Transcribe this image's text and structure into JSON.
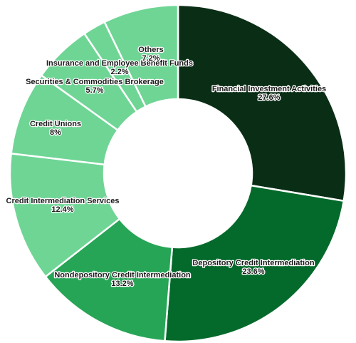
{
  "chart_data": {
    "type": "pie",
    "donut": true,
    "title": "",
    "legend": "none",
    "slices": [
      {
        "label": "Financial Investment Activities",
        "value": 27.6,
        "pct_label": "27.6%",
        "color": "#0a2e15"
      },
      {
        "label": "Depository Credit Intermediation",
        "value": 23.6,
        "pct_label": "23.6%",
        "color": "#046a2b"
      },
      {
        "label": "Nondepository Credit Intermediation",
        "value": 13.2,
        "pct_label": "13.2%",
        "color": "#27a556"
      },
      {
        "label": "Credit Intermediation Services",
        "value": 12.4,
        "pct_label": "12.4%",
        "color": "#6fd595"
      },
      {
        "label": "Credit Unions",
        "value": 8,
        "pct_label": "8%",
        "color": "#6fd595"
      },
      {
        "label": "Securities & Commodities Brokerage",
        "value": 5.7,
        "pct_label": "5.7%",
        "color": "#6fd595"
      },
      {
        "label": "Insurance and Employee Benefit Funds",
        "value": 2.2,
        "pct_label": "2.2%",
        "color": "#6fd595"
      },
      {
        "label": "Others",
        "value": 7.2,
        "pct_label": "7.2%",
        "color": "#6fd595"
      }
    ]
  }
}
